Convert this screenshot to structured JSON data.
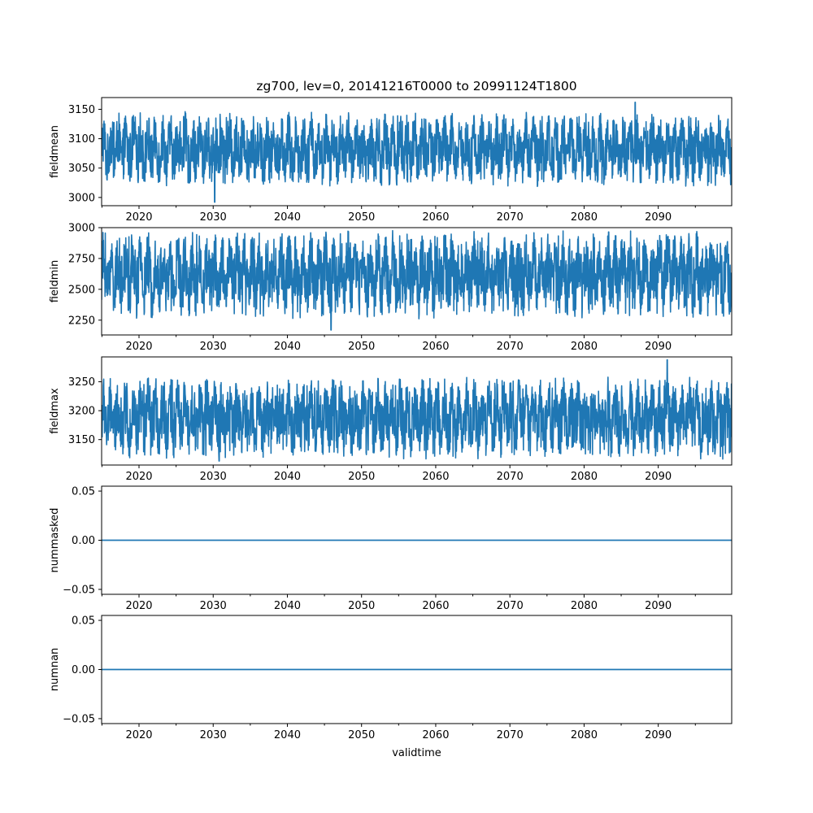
{
  "chart_data": {
    "type": "line",
    "title": "zg700, lev=0, 20141216T0000 to 20991124T1800",
    "xlabel": "validtime",
    "x_range": [
      2014.96,
      2099.9
    ],
    "x_ticks": [
      2020,
      2030,
      2040,
      2050,
      2060,
      2070,
      2080,
      2090
    ],
    "x_tick_labels": [
      "2020",
      "2030",
      "2040",
      "2050",
      "2060",
      "2070",
      "2080",
      "2090"
    ],
    "line_color": "#1f77b4",
    "panels": [
      {
        "ylabel": "fieldmean",
        "ylim": [
          2986,
          3170
        ],
        "y_ticks": [
          3000,
          3050,
          3100,
          3150
        ],
        "y_tick_labels": [
          "3000",
          "3050",
          "3100",
          "3150"
        ],
        "series": {
          "name": "fieldmean",
          "typical_low": 3040,
          "typical_high": 3125,
          "min": 2992,
          "max": 3162,
          "min_year": 2030.2,
          "max_year": 2086.9
        }
      },
      {
        "ylabel": "fieldmin",
        "ylim": [
          2130,
          3000
        ],
        "y_ticks": [
          2250,
          2500,
          2750,
          3000
        ],
        "y_tick_labels": [
          "2250",
          "2500",
          "2750",
          "3000"
        ],
        "series": {
          "name": "fieldmin",
          "typical_low": 2380,
          "typical_high": 2860,
          "min": 2170,
          "max": 2965,
          "min_year": 2045.9,
          "max_year": 2083.3
        }
      },
      {
        "ylabel": "fieldmax",
        "ylim": [
          3106,
          3293
        ],
        "y_ticks": [
          3150,
          3200,
          3250
        ],
        "y_tick_labels": [
          "3150",
          "3200",
          "3250"
        ],
        "series": {
          "name": "fieldmax",
          "typical_low": 3140,
          "typical_high": 3235,
          "min": 3113,
          "max": 3288,
          "min_year": 2030.8,
          "max_year": 2091.2
        }
      },
      {
        "ylabel": "nummasked",
        "ylim": [
          -0.055,
          0.055
        ],
        "y_ticks": [
          -0.05,
          0.0,
          0.05
        ],
        "y_tick_labels": [
          "−0.05",
          "0.00",
          "0.05"
        ],
        "series": {
          "name": "nummasked",
          "constant": 0.0
        }
      },
      {
        "ylabel": "numnan",
        "ylim": [
          -0.055,
          0.055
        ],
        "y_ticks": [
          -0.05,
          0.0,
          0.05
        ],
        "y_tick_labels": [
          "−0.05",
          "0.00",
          "0.05"
        ],
        "series": {
          "name": "numnan",
          "constant": 0.0
        }
      }
    ]
  }
}
